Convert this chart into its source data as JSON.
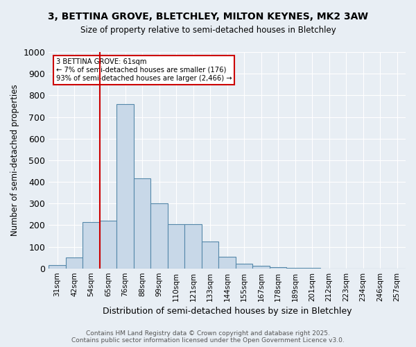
{
  "title_line1": "3, BETTINA GROVE, BLETCHLEY, MILTON KEYNES, MK2 3AW",
  "title_line2": "Size of property relative to semi-detached houses in Bletchley",
  "xlabel": "Distribution of semi-detached houses by size in Bletchley",
  "ylabel": "Number of semi-detached properties",
  "bin_labels": [
    "31sqm",
    "42sqm",
    "54sqm",
    "65sqm",
    "76sqm",
    "88sqm",
    "99sqm",
    "110sqm",
    "121sqm",
    "133sqm",
    "144sqm",
    "155sqm",
    "167sqm",
    "178sqm",
    "189sqm",
    "201sqm",
    "212sqm",
    "223sqm",
    "234sqm",
    "246sqm",
    "257sqm"
  ],
  "bar_heights": [
    15,
    50,
    215,
    220,
    760,
    415,
    300,
    205,
    205,
    125,
    55,
    20,
    12,
    5,
    3,
    1,
    0,
    0,
    0,
    0,
    0
  ],
  "bar_color": "#c8d8e8",
  "bar_edge_color": "#5588aa",
  "vline_color": "#cc0000",
  "vline_x": 2.5,
  "annotation_title": "3 BETTINA GROVE: 61sqm",
  "annotation_line2": "← 7% of semi-detached houses are smaller (176)",
  "annotation_line3": "93% of semi-detached houses are larger (2,466) →",
  "annotation_box_color": "#cc0000",
  "annotation_fill": "#ffffff",
  "footer_line1": "Contains HM Land Registry data © Crown copyright and database right 2025.",
  "footer_line2": "Contains public sector information licensed under the Open Government Licence v3.0.",
  "bg_color": "#e8eef4",
  "plot_bg_color": "#e8eef4",
  "ylim": [
    0,
    1000
  ],
  "yticks": [
    0,
    100,
    200,
    300,
    400,
    500,
    600,
    700,
    800,
    900,
    1000
  ]
}
